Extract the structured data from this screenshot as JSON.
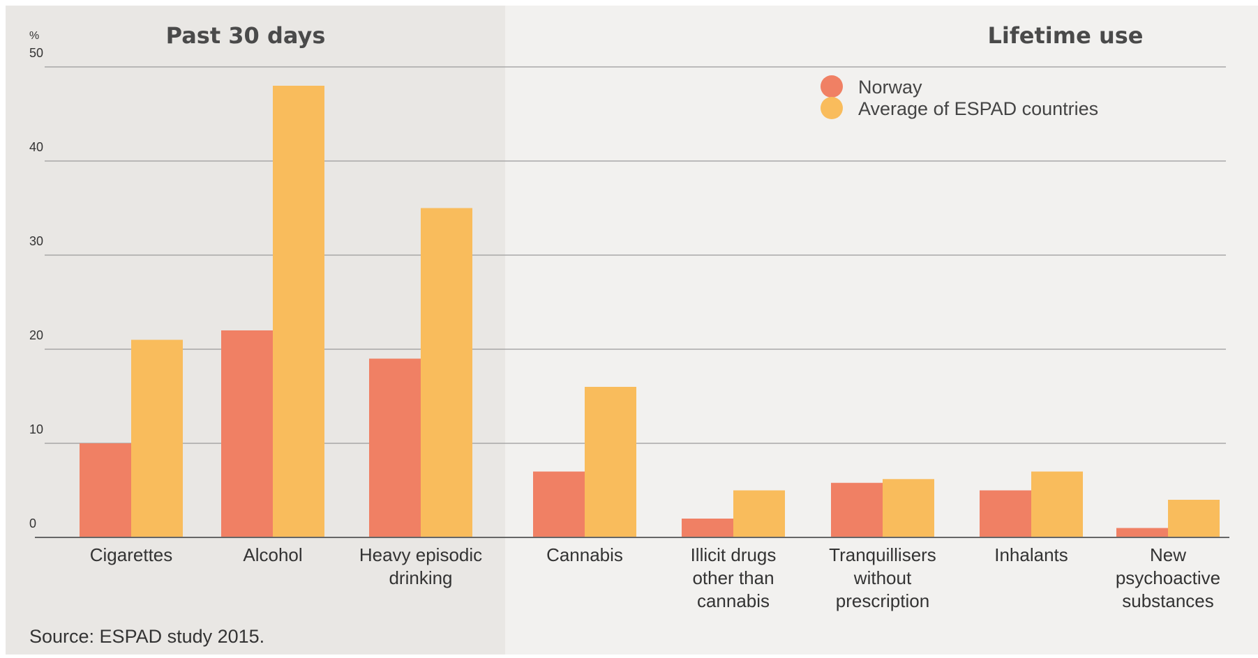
{
  "colors": {
    "norway": "#f08064",
    "espad": "#f9bc5c",
    "panel_left_bg": "#e9e7e4",
    "panel_right_bg": "#f2f1ef",
    "grid": "#9a9a9a"
  },
  "chart_data": {
    "type": "bar",
    "panels": [
      {
        "title": "Past 30 days",
        "categories": [
          0,
          1,
          2
        ]
      },
      {
        "title": "Lifetime use",
        "categories": [
          3,
          4,
          5,
          6,
          7
        ]
      }
    ],
    "categories": [
      [
        "Cigarettes"
      ],
      [
        "Alcohol"
      ],
      [
        "Heavy episodic",
        "drinking"
      ],
      [
        "Cannabis"
      ],
      [
        "Illicit drugs",
        "other than",
        "cannabis"
      ],
      [
        "Tranquillisers",
        "without",
        "prescription"
      ],
      [
        "Inhalants"
      ],
      [
        "New",
        "psychoactive",
        "substances"
      ]
    ],
    "series": [
      {
        "name": "Norway",
        "values": [
          10,
          22,
          19,
          7,
          2,
          5.8,
          5,
          1
        ]
      },
      {
        "name": "Average of ESPAD countries",
        "values": [
          21,
          48,
          35,
          16,
          5,
          6.2,
          7,
          4
        ]
      }
    ],
    "ylabel": "%",
    "ylim": [
      0,
      50
    ],
    "yticks": [
      0,
      10,
      20,
      30,
      40,
      50
    ],
    "grid": true,
    "legend_position": "top-right",
    "source": "Source: ESPAD study 2015."
  }
}
